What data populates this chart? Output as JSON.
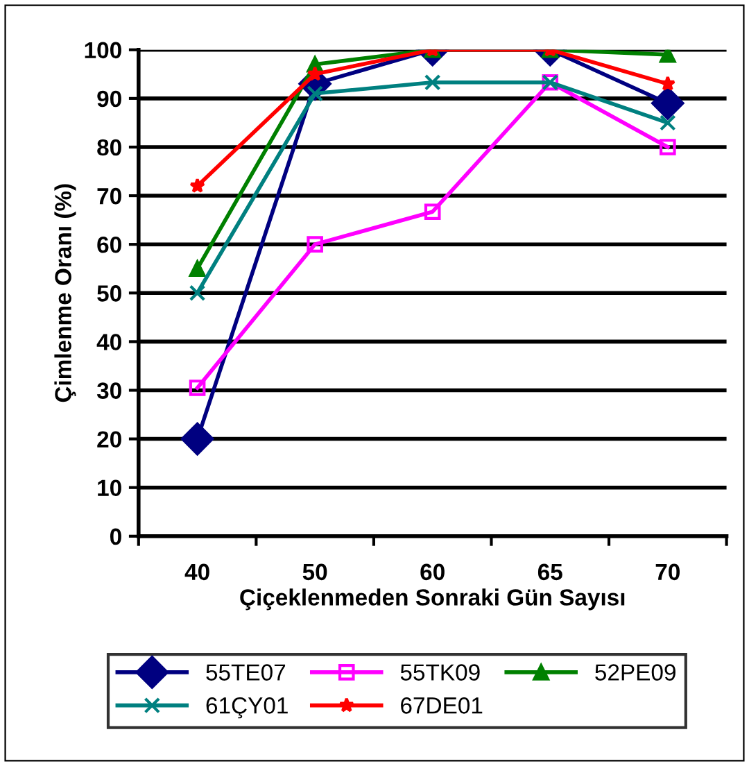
{
  "chart_data": {
    "type": "line",
    "xlabel": "Çiçeklenmeden Sonraki Gün Sayısı",
    "ylabel": "Çimlenme Oranı (%)",
    "categories": [
      "40",
      "50",
      "60",
      "65",
      "70"
    ],
    "ylim": [
      0,
      100
    ],
    "yticks": [
      0,
      10,
      20,
      30,
      40,
      50,
      60,
      70,
      80,
      90,
      100
    ],
    "grid": "y",
    "legend": "bottom",
    "series": [
      {
        "name": "55TE07",
        "color": "#000080",
        "marker": "diamond",
        "values": [
          20,
          93,
          100,
          100,
          89
        ]
      },
      {
        "name": "55TK09",
        "color": "#ff00ff",
        "marker": "square",
        "values": [
          30.5,
          60,
          66.7,
          93.3,
          80
        ]
      },
      {
        "name": "52PE09",
        "color": "#008000",
        "marker": "triangle",
        "values": [
          55,
          97,
          100,
          100,
          99
        ]
      },
      {
        "name": "61ÇY01",
        "color": "#008080",
        "marker": "cross",
        "values": [
          50,
          91,
          93.3,
          93.3,
          85
        ]
      },
      {
        "name": "67DE01",
        "color": "#ff0000",
        "marker": "star",
        "values": [
          72,
          95,
          100,
          100,
          93
        ]
      }
    ]
  }
}
